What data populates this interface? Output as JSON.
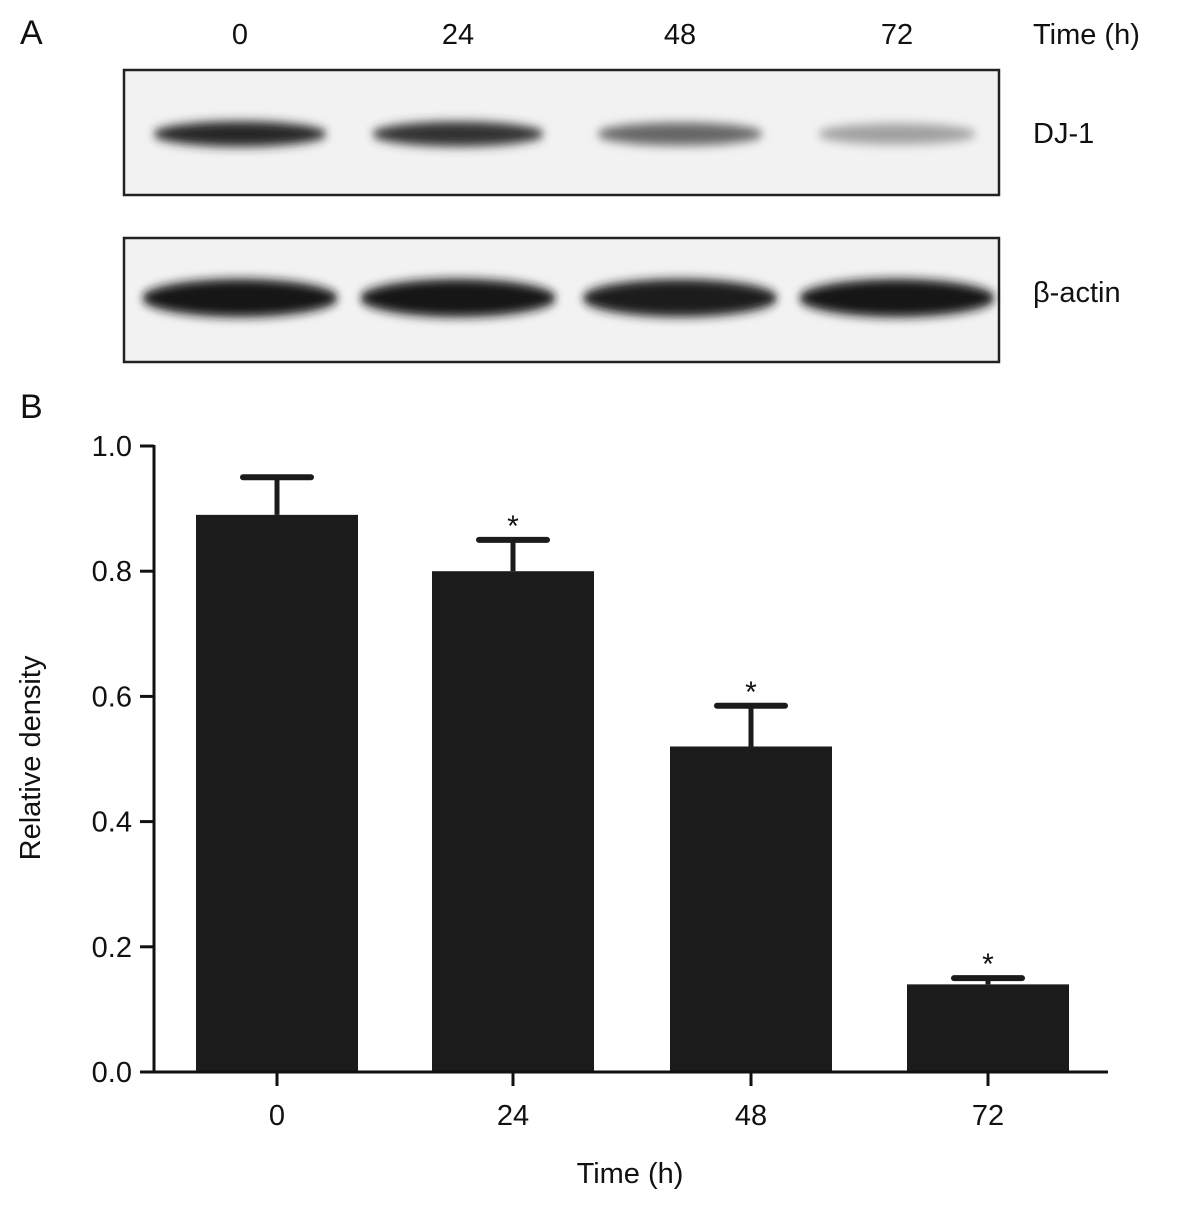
{
  "panel_a": {
    "label": "A",
    "time_header": "Time (h)",
    "lanes": [
      "0",
      "24",
      "48",
      "72"
    ],
    "blots": [
      {
        "name": "DJ-1",
        "band_intensity": [
          0.92,
          0.86,
          0.62,
          0.35
        ]
      },
      {
        "name": "β-actin",
        "band_intensity": [
          1.0,
          1.0,
          0.97,
          1.0
        ]
      }
    ]
  },
  "panel_b": {
    "label": "B",
    "significance_marker": "*"
  },
  "colors": {
    "bar_fill": "#1b1b1b",
    "axis": "#111111",
    "background": "#ffffff"
  },
  "chart_data": {
    "type": "bar",
    "categories": [
      "0",
      "24",
      "48",
      "72"
    ],
    "values": [
      0.89,
      0.8,
      0.52,
      0.14
    ],
    "error": [
      0.06,
      0.05,
      0.065,
      0.01
    ],
    "significant": [
      false,
      true,
      true,
      true
    ],
    "xlabel": "Time (h)",
    "ylabel": "Relative density",
    "ylim": [
      0,
      1.0
    ],
    "yticks": [
      "0.0",
      "0.2",
      "0.4",
      "0.6",
      "0.8",
      "1.0"
    ],
    "grid": false,
    "legend": "none"
  }
}
